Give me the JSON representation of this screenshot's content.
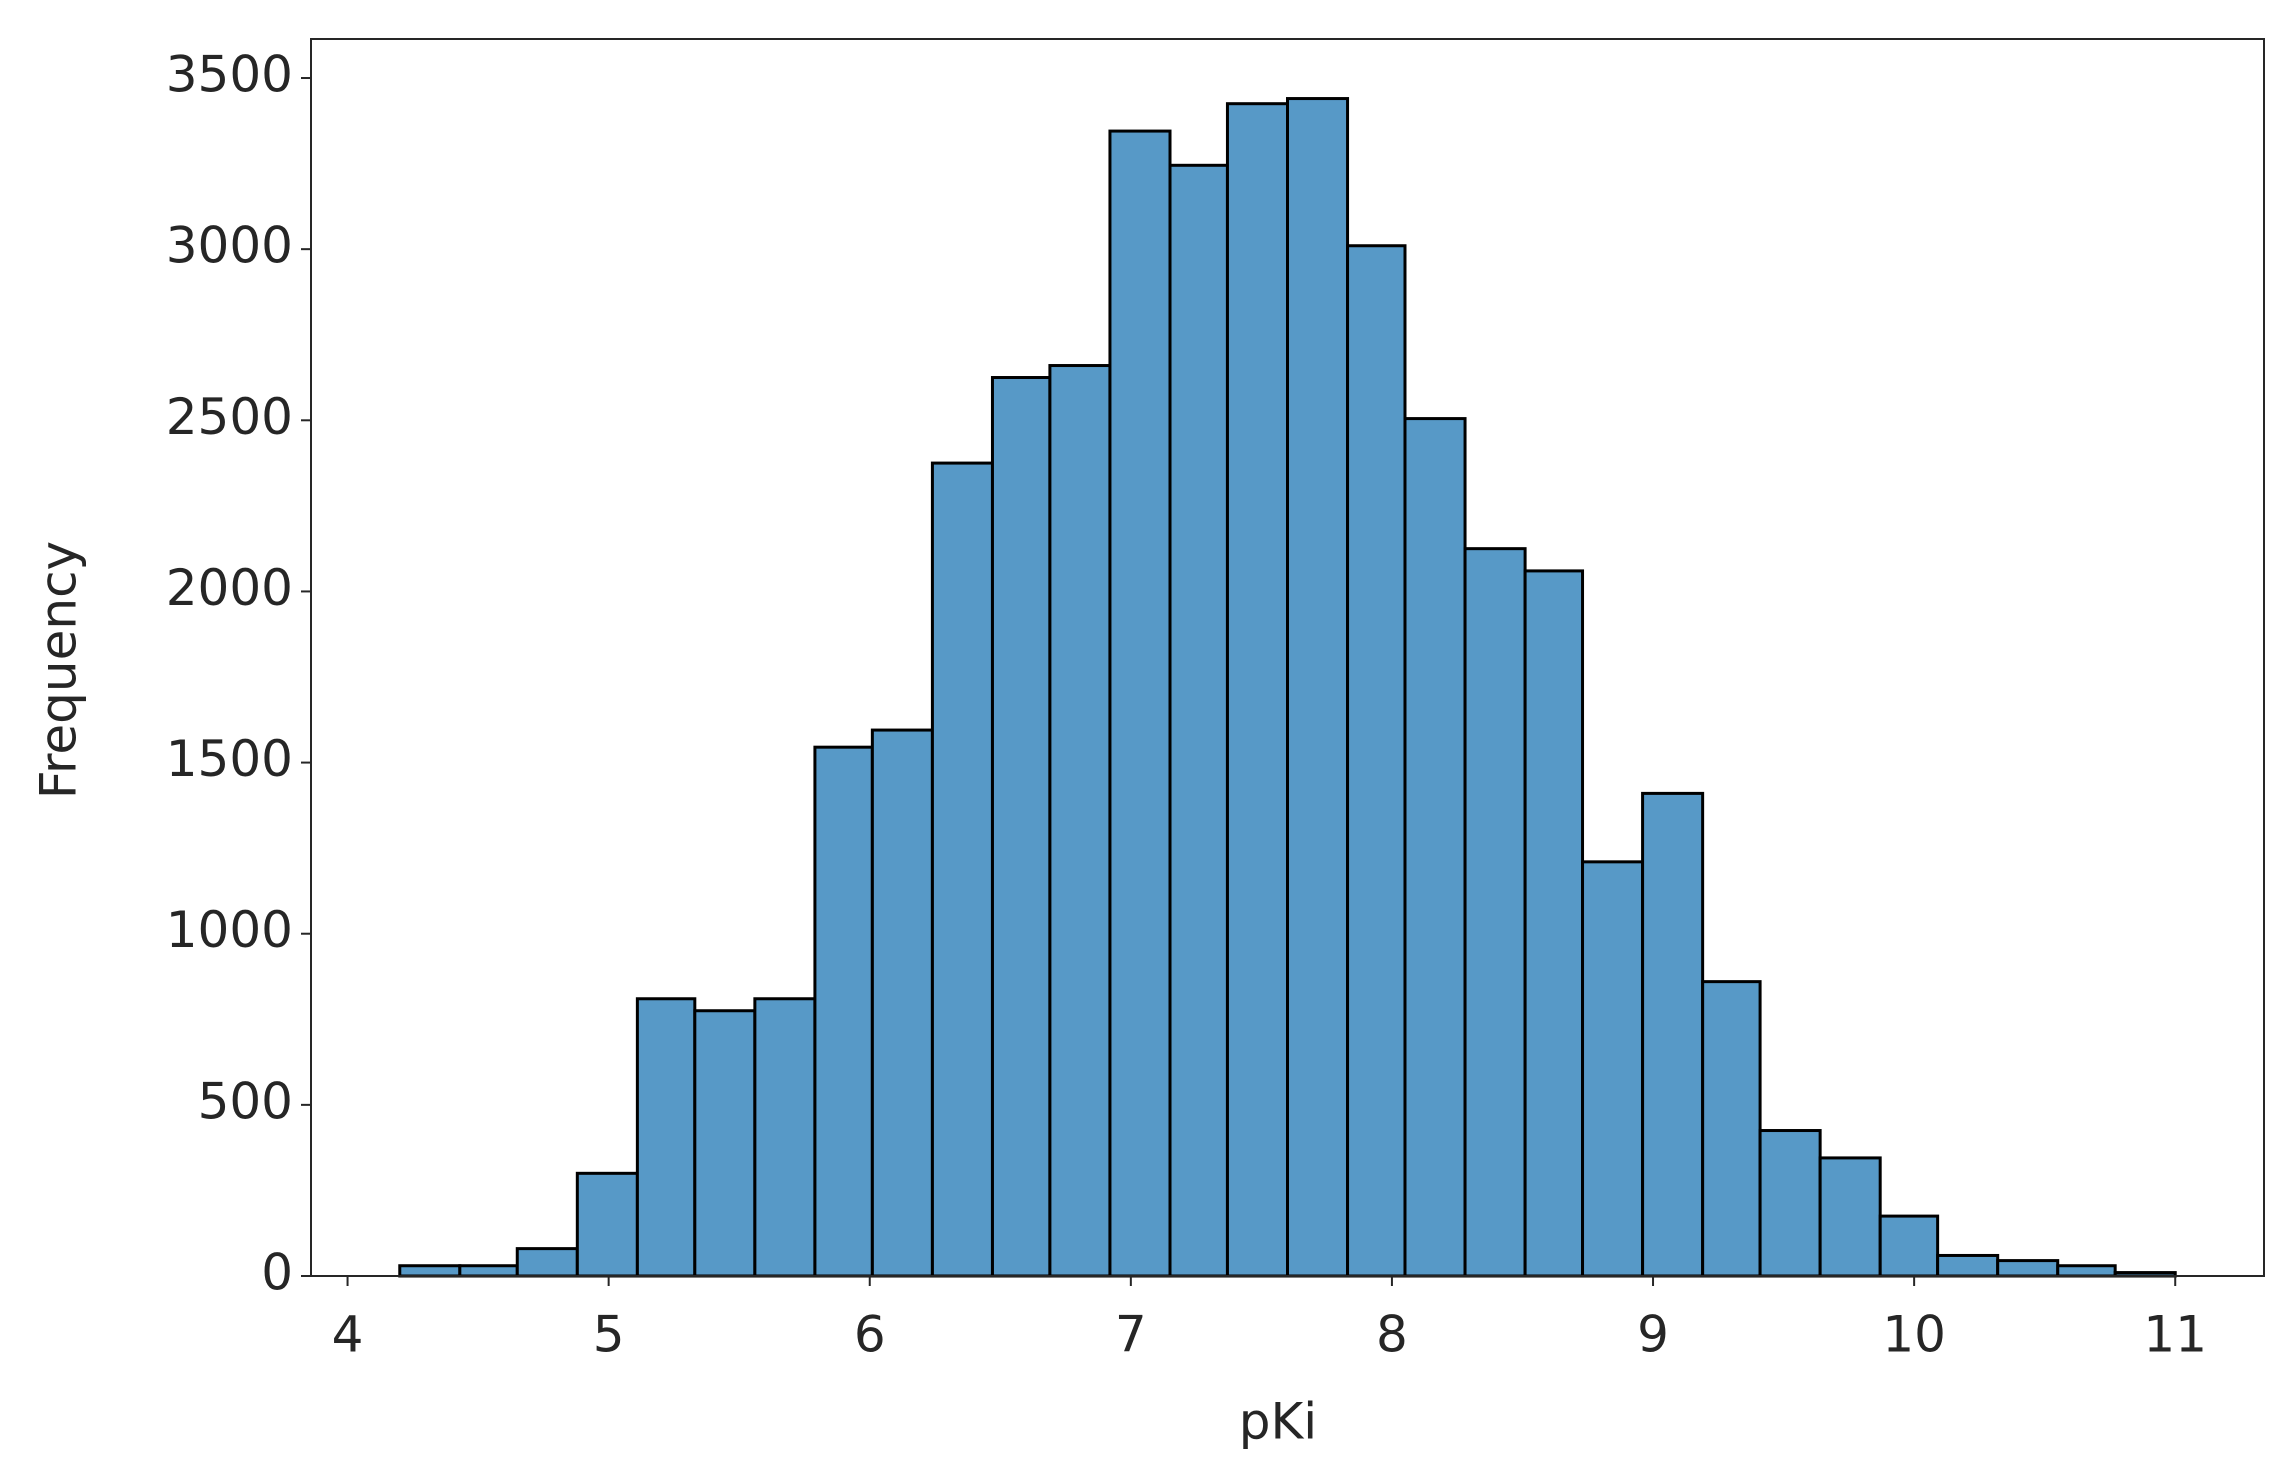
{
  "chart_data": {
    "type": "histogram",
    "x_label": "pKi",
    "y_label": "Frequency",
    "bins": [
      4.2,
      4.43,
      4.65,
      4.88,
      5.11,
      5.33,
      5.56,
      5.79,
      6.01,
      6.24,
      6.47,
      6.69,
      6.92,
      7.15,
      7.37,
      7.6,
      7.83,
      8.05,
      8.28,
      8.51,
      8.73,
      8.96,
      9.19,
      9.41,
      9.64,
      9.87,
      10.09,
      10.32,
      10.55,
      10.77,
      11.0
    ],
    "values": [
      30,
      30,
      80,
      300,
      810,
      775,
      810,
      1545,
      1595,
      2375,
      2625,
      2660,
      3345,
      3245,
      3425,
      3440,
      3010,
      2505,
      2125,
      2060,
      1210,
      1410,
      860,
      425,
      345,
      175,
      60,
      45,
      30,
      10
    ],
    "color": "#5799c7",
    "edgecolor": "#000000",
    "xlim": [
      3.86,
      11.34
    ],
    "xticks": [
      4,
      5,
      6,
      7,
      8,
      9,
      10,
      11
    ],
    "ylim": [
      0,
      3614
    ],
    "yticks": [
      0,
      500,
      1000,
      1500,
      2000,
      2500,
      3000,
      3500
    ]
  }
}
